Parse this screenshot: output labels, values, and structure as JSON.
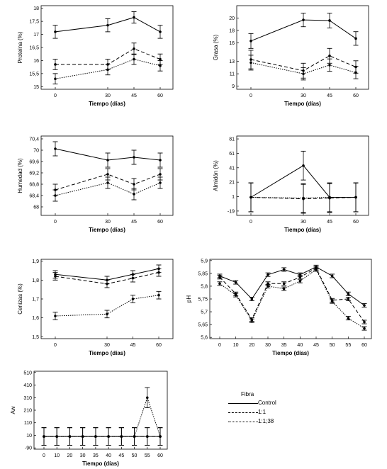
{
  "legend": {
    "title": "Fibra",
    "items": [
      {
        "label": "Control",
        "style": "solid"
      },
      {
        "label": "1:1",
        "style": "dashed"
      },
      {
        "label": "1:1;38",
        "style": "dotted"
      }
    ]
  },
  "chart_data": [
    {
      "type": "line",
      "xlabel": "Tiempo (días)",
      "ylabel": "Proteína (%)",
      "x": [
        0,
        30,
        45,
        60
      ],
      "xticks": [
        0,
        30,
        45,
        60
      ],
      "ylim": [
        14.9,
        18.1
      ],
      "yticks": [
        15,
        15.5,
        16,
        16.5,
        17,
        17.5,
        18
      ],
      "yticklabels": [
        "15",
        "15,5",
        "16",
        "16,5",
        "17",
        "17,5",
        "18"
      ],
      "series": [
        {
          "values": [
            17.1,
            17.35,
            17.65,
            17.1
          ],
          "err": [
            0.25,
            0.25,
            0.22,
            0.25
          ]
        },
        {
          "values": [
            15.85,
            15.85,
            16.45,
            16.05
          ],
          "err": [
            0.2,
            0.2,
            0.22,
            0.2
          ]
        },
        {
          "values": [
            15.3,
            15.65,
            16.05,
            15.8
          ],
          "err": [
            0.2,
            0.2,
            0.2,
            0.2
          ]
        }
      ]
    },
    {
      "type": "line",
      "xlabel": "Tiempo (días)",
      "ylabel": "Grasa (%)",
      "x": [
        0,
        30,
        45,
        60
      ],
      "xticks": [
        0,
        30,
        45,
        60
      ],
      "ylim": [
        8.5,
        22
      ],
      "yticks": [
        9,
        11,
        13,
        16,
        18,
        20
      ],
      "yticklabels": [
        "9",
        "11",
        "13",
        "16",
        "18",
        "20"
      ],
      "series": [
        {
          "values": [
            16.3,
            19.7,
            19.6,
            16.7
          ],
          "err": [
            1.2,
            1.1,
            1.2,
            1.1
          ]
        },
        {
          "values": [
            13.3,
            11.5,
            13.9,
            12.1
          ],
          "err": [
            1.5,
            1.2,
            1.2,
            1.0
          ]
        },
        {
          "values": [
            12.8,
            11.0,
            12.4,
            11.2
          ],
          "err": [
            1.2,
            1.0,
            1.0,
            1.0
          ]
        }
      ]
    },
    {
      "type": "line",
      "xlabel": "Tiempo (días)",
      "ylabel": "Humedad (%)",
      "x": [
        0,
        30,
        45,
        60
      ],
      "xticks": [
        0,
        30,
        45,
        60
      ],
      "ylim": [
        67.7,
        70.5
      ],
      "yticks": [
        68,
        68.4,
        68.8,
        69.2,
        69.6,
        70,
        70.4
      ],
      "yticklabels": [
        "68",
        "68,4",
        "68,8",
        "69,2",
        "69,6",
        "70",
        "70,4"
      ],
      "series": [
        {
          "values": [
            70.05,
            69.65,
            69.75,
            69.65
          ],
          "err": [
            0.25,
            0.25,
            0.25,
            0.25
          ]
        },
        {
          "values": [
            68.6,
            69.15,
            68.8,
            69.15
          ],
          "err": [
            0.2,
            0.2,
            0.2,
            0.2
          ]
        },
        {
          "values": [
            68.4,
            68.85,
            68.45,
            68.85
          ],
          "err": [
            0.2,
            0.2,
            0.2,
            0.2
          ]
        }
      ]
    },
    {
      "type": "line",
      "xlabel": "Tiempo (días)",
      "ylabel": "Almidón (%)",
      "x": [
        0,
        30,
        45,
        60
      ],
      "xticks": [
        0,
        30,
        45,
        60
      ],
      "ylim": [
        -25,
        85
      ],
      "yticks": [
        -19,
        1,
        21,
        41,
        61,
        81
      ],
      "yticklabels": [
        "-19",
        "1",
        "21",
        "41",
        "61",
        "81"
      ],
      "series": [
        {
          "values": [
            0,
            44,
            0,
            0
          ],
          "err": [
            20,
            20,
            20,
            20
          ]
        },
        {
          "values": [
            0,
            -2,
            -1,
            0
          ],
          "err": [
            20,
            20,
            20,
            20
          ]
        },
        {
          "values": [
            0,
            -1,
            0,
            0
          ],
          "err": [
            20,
            20,
            20,
            20
          ]
        }
      ]
    },
    {
      "type": "line",
      "xlabel": "Tiempo (días)",
      "ylabel": "Cenizas (%)",
      "x": [
        0,
        30,
        45,
        60
      ],
      "xticks": [
        0,
        30,
        45,
        60
      ],
      "ylim": [
        1.49,
        1.91
      ],
      "yticks": [
        1.5,
        1.6,
        1.7,
        1.8,
        1.9
      ],
      "yticklabels": [
        "1,5",
        "1,6",
        "1,7",
        "1,8",
        "1,9"
      ],
      "series": [
        {
          "values": [
            1.83,
            1.8,
            1.83,
            1.86
          ],
          "err": [
            0.02,
            0.02,
            0.02,
            0.02
          ]
        },
        {
          "values": [
            1.82,
            1.78,
            1.81,
            1.84
          ],
          "err": [
            0.02,
            0.02,
            0.02,
            0.02
          ]
        },
        {
          "values": [
            1.61,
            1.62,
            1.7,
            1.72
          ],
          "err": [
            0.02,
            0.02,
            0.02,
            0.02
          ]
        }
      ]
    },
    {
      "type": "line",
      "xlabel": "Tiempo (días)",
      "ylabel": "pH",
      "x": [
        0,
        10,
        20,
        30,
        35,
        40,
        45,
        50,
        55,
        60
      ],
      "xticks": [
        0,
        10,
        20,
        30,
        35,
        40,
        45,
        50,
        55,
        60
      ],
      "ylim": [
        5.595,
        5.905
      ],
      "yticks": [
        5.6,
        5.65,
        5.7,
        5.75,
        5.8,
        5.85,
        5.9
      ],
      "yticklabels": [
        "5,6",
        "5,65",
        "5,7",
        "5,75",
        "5,8",
        "5,85",
        "5,9"
      ],
      "series": [
        {
          "values": [
            5.84,
            5.815,
            5.75,
            5.845,
            5.865,
            5.845,
            5.875,
            5.84,
            5.77,
            5.725
          ],
          "err": [
            0.007,
            0.007,
            0.007,
            0.007,
            0.007,
            0.007,
            0.007,
            0.007,
            0.007,
            0.007
          ]
        },
        {
          "values": [
            5.835,
            5.77,
            5.67,
            5.81,
            5.81,
            5.835,
            5.87,
            5.745,
            5.75,
            5.66
          ],
          "err": [
            0.007,
            0.007,
            0.007,
            0.007,
            0.007,
            0.007,
            0.007,
            0.007,
            0.007,
            0.007
          ]
        },
        {
          "values": [
            5.81,
            5.765,
            5.665,
            5.8,
            5.79,
            5.82,
            5.865,
            5.74,
            5.675,
            5.635
          ],
          "err": [
            0.007,
            0.007,
            0.007,
            0.007,
            0.007,
            0.007,
            0.007,
            0.007,
            0.007,
            0.007
          ]
        }
      ]
    },
    {
      "type": "line",
      "xlabel": "Tiempo (días)",
      "ylabel": "Aw",
      "x": [
        0,
        10,
        20,
        30,
        35,
        40,
        45,
        50,
        55,
        60
      ],
      "xticks": [
        0,
        10,
        20,
        30,
        35,
        40,
        45,
        50,
        55,
        60
      ],
      "ylim": [
        -100,
        520
      ],
      "yticks": [
        -90,
        10,
        110,
        210,
        310,
        410,
        510
      ],
      "yticklabels": [
        "-90",
        "10",
        "110",
        "210",
        "310",
        "410",
        "510"
      ],
      "series": [
        {
          "values": [
            1,
            1,
            1,
            1,
            1,
            1,
            1,
            1,
            1,
            1
          ],
          "err": [
            70,
            70,
            70,
            70,
            70,
            70,
            70,
            70,
            70,
            70
          ]
        },
        {
          "values": [
            1,
            1,
            1,
            1,
            1,
            1,
            1,
            1,
            1,
            1
          ],
          "err": [
            70,
            70,
            70,
            70,
            70,
            70,
            70,
            70,
            70,
            70
          ]
        },
        {
          "values": [
            1,
            1,
            1,
            1,
            1,
            1,
            1,
            1,
            310,
            1
          ],
          "err": [
            70,
            70,
            70,
            70,
            70,
            70,
            70,
            70,
            80,
            70
          ]
        }
      ]
    }
  ]
}
